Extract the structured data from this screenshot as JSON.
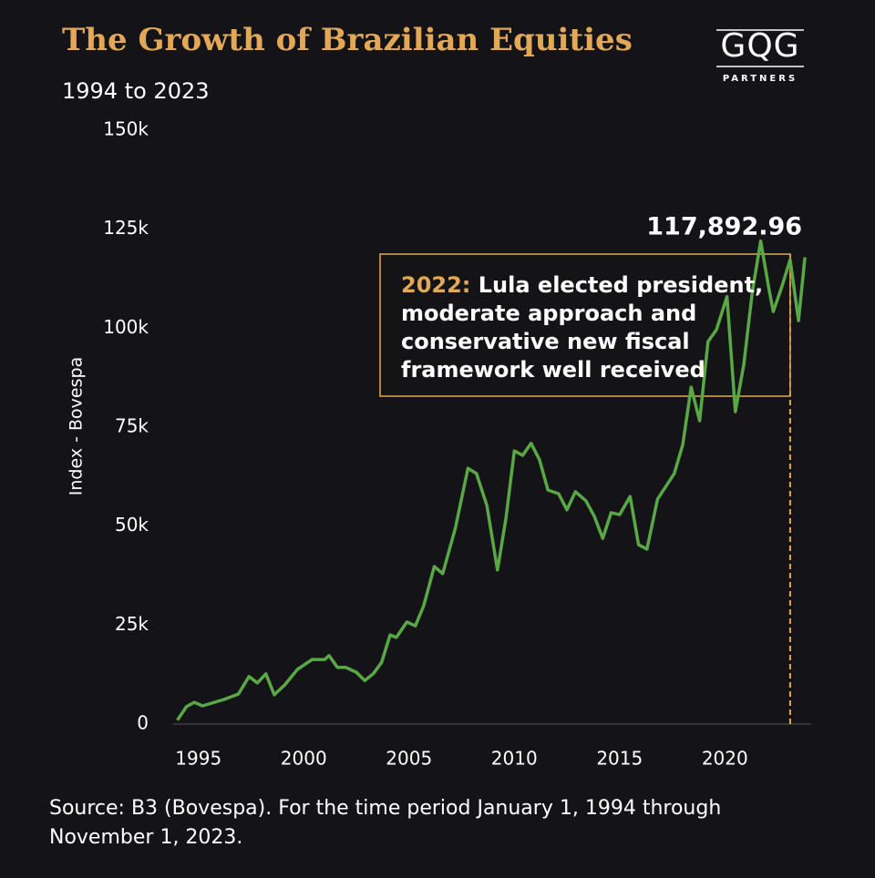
{
  "chart_data": {
    "type": "line",
    "title": "The Growth of Brazilian Equities",
    "subtitle": "1994 to 2023",
    "y_label": "Index - Bovespa",
    "logo": {
      "name": "GQG",
      "tagline": "PARTNERS"
    },
    "source": [
      "Source: B3 (Bovespa). For the time period January 1, 1994 through",
      "November 1, 2023."
    ],
    "annotation": {
      "label": "2022:",
      "lines": [
        "Lula elected president,",
        "moderate approach and",
        "conservative new fiscal",
        "framework well received"
      ],
      "color": "#e3a857"
    },
    "xlim": [
      1993.8,
      2024.1
    ],
    "xticks": [
      1995,
      2000,
      2005,
      2010,
      2015,
      2020
    ],
    "ylim": [
      0,
      150000
    ],
    "yticks": [
      {
        "value": 0,
        "label": "0"
      },
      {
        "value": 25000,
        "label": "25k"
      },
      {
        "value": 50000,
        "label": "50k"
      },
      {
        "value": 75000,
        "label": "75k"
      },
      {
        "value": 100000,
        "label": "100k"
      },
      {
        "value": 125000,
        "label": "125k"
      },
      {
        "value": 150000,
        "label": "150k"
      }
    ],
    "grid": false,
    "series": [
      {
        "name": "Bovespa",
        "color": "#5aa845",
        "x": [
          1994.0,
          1994.43,
          1994.8,
          1995.2,
          1996.2,
          1996.9,
          1997.4,
          1997.8,
          1998.2,
          1998.6,
          1999.1,
          1999.7,
          2000.4,
          2001.0,
          2001.2,
          2001.6,
          2002.0,
          2002.5,
          2002.9,
          2003.3,
          2003.7,
          2004.1,
          2004.4,
          2004.9,
          2005.3,
          2005.7,
          2006.2,
          2006.6,
          2007.2,
          2007.8,
          2008.2,
          2008.7,
          2009.2,
          2009.6,
          2010.0,
          2010.4,
          2010.8,
          2011.2,
          2011.6,
          2012.1,
          2012.5,
          2012.9,
          2013.4,
          2013.8,
          2014.2,
          2014.6,
          2015.0,
          2015.5,
          2015.9,
          2016.3,
          2016.8,
          2017.6,
          2018.0,
          2018.4,
          2018.8,
          2019.2,
          2019.6,
          2020.1,
          2020.5,
          2020.9,
          2021.3,
          2021.7,
          2022.1,
          2022.3,
          2022.7,
          2023.1,
          2023.5,
          2023.8
        ],
        "values": [
          1000,
          4400,
          5500,
          4600,
          6200,
          7600,
          12000,
          10400,
          12700,
          7400,
          9900,
          13800,
          16300,
          16300,
          17300,
          14300,
          14300,
          13100,
          11000,
          12700,
          15600,
          22500,
          21900,
          25800,
          24800,
          29900,
          39800,
          38000,
          49500,
          64600,
          63300,
          55200,
          38900,
          51800,
          69000,
          67900,
          70900,
          66700,
          59100,
          58200,
          54100,
          58700,
          56400,
          52500,
          46900,
          53400,
          52900,
          57500,
          45300,
          44200,
          56800,
          63300,
          70600,
          85100,
          76600,
          96600,
          99600,
          108000,
          78900,
          90900,
          109000,
          122000,
          109700,
          104200,
          110400,
          117300,
          101900,
          117892.96
        ],
        "value_labels": [
          null,
          null,
          null,
          null,
          null,
          null,
          null,
          null,
          null,
          null,
          null,
          null,
          null,
          null,
          null,
          null,
          null,
          null,
          null,
          null,
          null,
          null,
          null,
          null,
          null,
          null,
          null,
          null,
          null,
          null,
          null,
          null,
          null,
          null,
          null,
          null,
          null,
          null,
          null,
          null,
          null,
          null,
          null,
          null,
          null,
          null,
          null,
          null,
          null,
          null,
          null,
          null,
          null,
          null,
          null,
          null,
          null,
          null,
          null,
          null,
          null,
          null,
          null,
          null,
          null,
          null,
          null,
          "117,892.96"
        ]
      }
    ]
  }
}
